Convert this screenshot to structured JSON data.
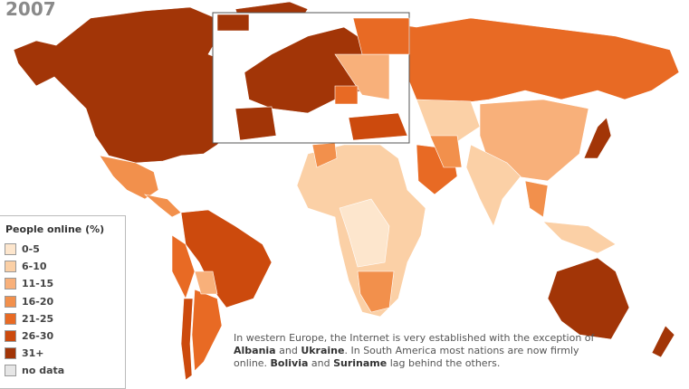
{
  "header": {
    "year": "2007"
  },
  "legend": {
    "title": "People online (%)",
    "items": [
      {
        "label": "0-5",
        "color": "#fde6cd"
      },
      {
        "label": "6-10",
        "color": "#fbd0a6"
      },
      {
        "label": "11-15",
        "color": "#f8b07a"
      },
      {
        "label": "16-20",
        "color": "#f2904c"
      },
      {
        "label": "21-25",
        "color": "#e86a24"
      },
      {
        "label": "26-30",
        "color": "#cc4a0d"
      },
      {
        "label": "31+",
        "color": "#a23507"
      },
      {
        "label": "no data",
        "color": "#e6e6e6"
      }
    ]
  },
  "caption": {
    "parts": [
      {
        "text": "In western Europe, the Internet is very established with the exception of ",
        "bold": false
      },
      {
        "text": "Albania",
        "bold": true
      },
      {
        "text": " and ",
        "bold": false
      },
      {
        "text": "Ukraine",
        "bold": true
      },
      {
        "text": ". In South America most nations are now firmly online. ",
        "bold": false
      },
      {
        "text": "Bolivia",
        "bold": true
      },
      {
        "text": " and ",
        "bold": false
      },
      {
        "text": "Suriname",
        "bold": true
      },
      {
        "text": " lag behind the others.",
        "bold": false
      }
    ]
  }
}
